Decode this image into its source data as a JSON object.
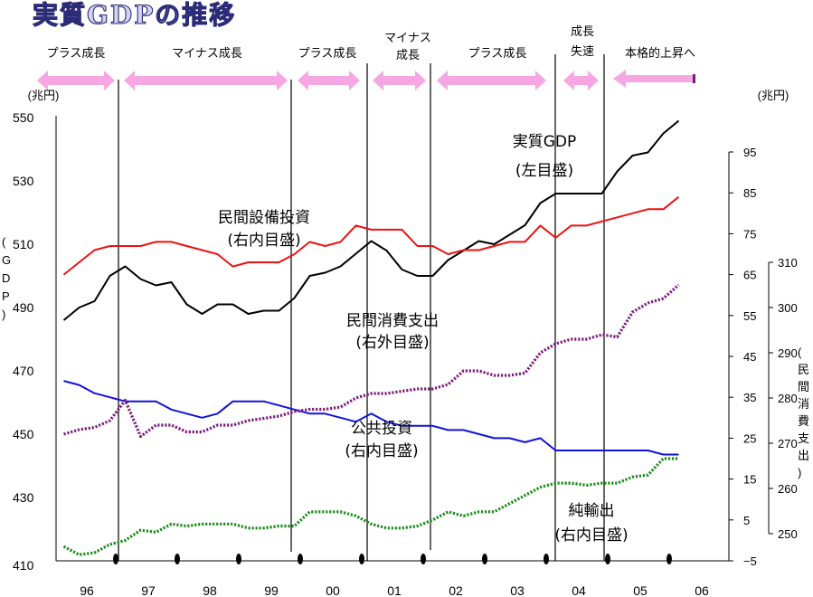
{
  "title": "実質GDPの推移",
  "phases": [
    {
      "label": "プラス成長"
    },
    {
      "label": "マイナス成長"
    },
    {
      "label": "プラス成長"
    },
    {
      "label": "マイナス成長"
    },
    {
      "label": "プラス成長"
    },
    {
      "label": "成長失速"
    },
    {
      "label": "本格的上昇へ"
    }
  ],
  "left_axis": {
    "unit": "(兆円)",
    "label": "(GDP)",
    "ticks": [
      "410",
      "430",
      "450",
      "470",
      "490",
      "510",
      "530",
      "550"
    ]
  },
  "right_inner_axis": {
    "unit": "(兆円)",
    "ticks": [
      "−5",
      "5",
      "15",
      "25",
      "35",
      "45",
      "55",
      "65",
      "75",
      "85",
      "95"
    ]
  },
  "right_outer_axis": {
    "label": "(民間消費支出)",
    "ticks": [
      "250",
      "260",
      "270",
      "280",
      "290",
      "300",
      "310"
    ]
  },
  "x_labels": [
    "96",
    "97",
    "98",
    "99",
    "00",
    "01",
    "02",
    "03",
    "04",
    "05",
    "06"
  ],
  "annotations": {
    "gdp": {
      "name": "実質GDP",
      "scale": "(左目盛)"
    },
    "capex": {
      "name": "民間設備投資",
      "scale": "(右内目盛)"
    },
    "consumption": {
      "name": "民間消費支出",
      "scale": "(右外目盛)"
    },
    "public": {
      "name": "公共投資",
      "scale": "(右内目盛)"
    },
    "net_exports": {
      "name": "純輸出",
      "scale": "(右内目盛)"
    }
  },
  "colors": {
    "gdp": "#000000",
    "capex": "#ee1111",
    "consumption": "#7b1a7b",
    "public": "#1111dd",
    "net_exports": "#1a8a1a",
    "arrow": "#f7a6e4",
    "title_fill": "#d6d2f2",
    "title_stroke": "#2b2b78"
  },
  "chart_data": {
    "type": "line",
    "x": [
      "96Q1",
      "96Q2",
      "96Q3",
      "96Q4",
      "97Q1",
      "97Q2",
      "97Q3",
      "97Q4",
      "98Q1",
      "98Q2",
      "98Q3",
      "98Q4",
      "99Q1",
      "99Q2",
      "99Q3",
      "99Q4",
      "00Q1",
      "00Q2",
      "00Q3",
      "00Q4",
      "01Q1",
      "01Q2",
      "01Q3",
      "01Q4",
      "02Q1",
      "02Q2",
      "02Q3",
      "02Q4",
      "03Q1",
      "03Q2",
      "03Q3",
      "03Q4",
      "04Q1",
      "04Q2",
      "04Q3",
      "04Q4",
      "05Q1",
      "05Q2",
      "05Q3",
      "05Q4",
      "06Q1"
    ],
    "x_tick_labels": [
      "96",
      "97",
      "98",
      "99",
      "00",
      "01",
      "02",
      "03",
      "04",
      "05",
      "06"
    ],
    "ylim_left": [
      410,
      550
    ],
    "ylim_right_inner": [
      -5,
      95
    ],
    "ylim_right_outer": [
      250,
      310
    ],
    "series": [
      {
        "name": "実質GDP",
        "axis": "left",
        "style": "solid",
        "values": [
          486,
          490,
          492,
          500,
          503,
          499,
          497,
          498,
          491,
          488,
          491,
          491,
          488,
          489,
          489,
          493,
          500,
          501,
          503,
          507,
          511,
          508,
          502,
          500,
          500,
          505,
          508,
          511,
          510,
          513,
          516,
          523,
          526,
          526,
          526,
          526,
          533,
          538,
          539,
          545,
          549
        ]
      },
      {
        "name": "民間設備投資",
        "axis": "right_inner",
        "style": "solid",
        "values": [
          65,
          68,
          71,
          72,
          72,
          72,
          73,
          73,
          72,
          71,
          70,
          67,
          68,
          68,
          68,
          70,
          73,
          72,
          73,
          77,
          76,
          76,
          76,
          72,
          72,
          70,
          71,
          71,
          72,
          73,
          73,
          77,
          74,
          77,
          77,
          78,
          79,
          80,
          81,
          81,
          84
        ]
      },
      {
        "name": "公共投資",
        "axis": "right_inner",
        "style": "solid",
        "values": [
          39,
          38,
          36,
          35,
          34,
          34,
          34,
          32,
          31,
          30,
          31,
          34,
          34,
          34,
          33,
          32,
          31,
          31,
          30,
          29,
          31,
          29,
          28,
          28,
          28,
          27,
          27,
          26,
          25,
          25,
          24,
          25,
          22,
          22,
          22,
          22,
          22,
          22,
          22,
          21,
          21
        ]
      },
      {
        "name": "純輸出",
        "axis": "right_inner",
        "style": "dotted",
        "values": [
          -1.5,
          -3.5,
          -3,
          -1,
          0,
          2.5,
          2,
          4,
          3.5,
          4,
          4,
          4,
          3,
          3,
          3.5,
          3.5,
          7,
          7,
          7,
          6,
          4,
          3,
          3,
          3.5,
          5,
          7,
          6,
          7,
          7,
          9,
          11,
          13,
          14,
          14,
          13.5,
          14,
          14,
          15.5,
          16,
          20,
          20
        ]
      },
      {
        "name": "民間消費支出",
        "axis": "right_outer",
        "style": "dotted",
        "values": [
          272,
          273,
          273.5,
          275,
          279.5,
          271.5,
          274,
          274,
          272.5,
          272.5,
          274,
          274,
          275,
          275.5,
          276,
          277,
          277.5,
          277.5,
          278,
          280,
          281,
          281,
          281.5,
          282,
          282,
          283,
          286,
          286,
          285,
          285,
          285.5,
          290,
          292,
          293,
          293,
          294,
          293.5,
          299,
          301,
          302,
          305
        ]
      }
    ]
  }
}
